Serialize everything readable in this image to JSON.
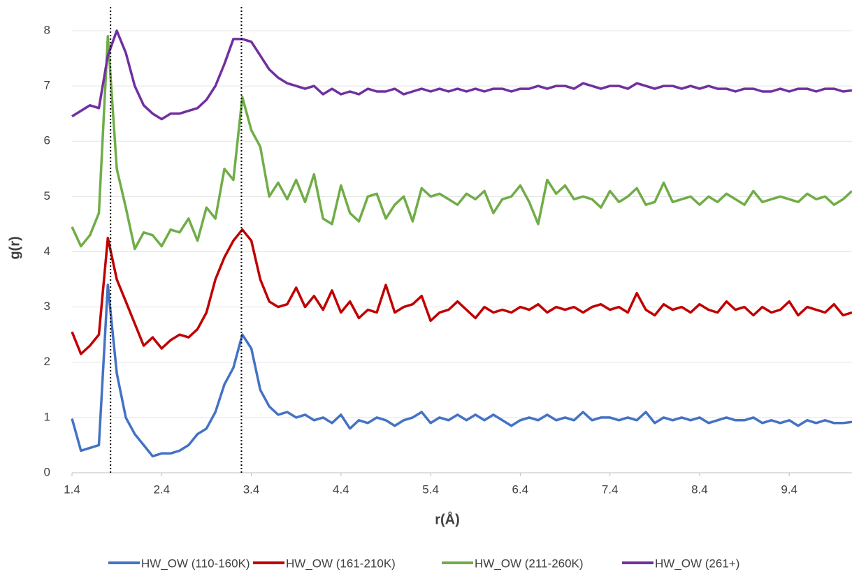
{
  "chart_data": {
    "type": "line",
    "x_label": "r(Å)",
    "y_label": "g(r)",
    "x": [
      1.4,
      1.5,
      1.6,
      1.7,
      1.8,
      1.9,
      2.0,
      2.1,
      2.2,
      2.3,
      2.4,
      2.5,
      2.6,
      2.7,
      2.8,
      2.9,
      3.0,
      3.1,
      3.2,
      3.3,
      3.4,
      3.5,
      3.6,
      3.7,
      3.8,
      3.9,
      4.0,
      4.1,
      4.2,
      4.3,
      4.4,
      4.5,
      4.6,
      4.7,
      4.8,
      4.9,
      5.0,
      5.1,
      5.2,
      5.3,
      5.4,
      5.5,
      5.6,
      5.7,
      5.8,
      5.9,
      6.0,
      6.1,
      6.2,
      6.3,
      6.4,
      6.5,
      6.6,
      6.7,
      6.8,
      6.9,
      7.0,
      7.1,
      7.2,
      7.3,
      7.4,
      7.5,
      7.6,
      7.7,
      7.8,
      7.9,
      8.0,
      8.1,
      8.2,
      8.3,
      8.4,
      8.5,
      8.6,
      8.7,
      8.8,
      8.9,
      9.0,
      9.1,
      9.2,
      9.3,
      9.4,
      9.5,
      9.6,
      9.7,
      9.8,
      9.9,
      10.0,
      10.1
    ],
    "series": [
      {
        "name": "HW_OW (110-160K)",
        "color": "#4472c4",
        "values": [
          0.98,
          0.4,
          0.45,
          0.5,
          3.4,
          1.8,
          1.0,
          0.7,
          0.5,
          0.3,
          0.35,
          0.35,
          0.4,
          0.5,
          0.7,
          0.8,
          1.1,
          1.6,
          1.9,
          2.5,
          2.25,
          1.5,
          1.2,
          1.05,
          1.1,
          1.0,
          1.05,
          0.95,
          1.0,
          0.9,
          1.05,
          0.8,
          0.95,
          0.9,
          1.0,
          0.95,
          0.85,
          0.95,
          1.0,
          1.1,
          0.9,
          1.0,
          0.95,
          1.05,
          0.95,
          1.05,
          0.95,
          1.05,
          0.95,
          0.85,
          0.95,
          1.0,
          0.95,
          1.05,
          0.95,
          1.0,
          0.95,
          1.1,
          0.95,
          1.0,
          1.0,
          0.95,
          1.0,
          0.95,
          1.1,
          0.9,
          1.0,
          0.95,
          1.0,
          0.95,
          1.0,
          0.9,
          0.95,
          1.0,
          0.95,
          0.95,
          1.0,
          0.9,
          0.95,
          0.9,
          0.95,
          0.85,
          0.95,
          0.9,
          0.95,
          0.9,
          0.9,
          0.92
        ]
      },
      {
        "name": "HW_OW (161-210K)",
        "color": "#c00000",
        "values": [
          2.55,
          2.15,
          2.3,
          2.5,
          4.25,
          3.5,
          3.1,
          2.7,
          2.3,
          2.45,
          2.25,
          2.4,
          2.5,
          2.45,
          2.6,
          2.9,
          3.5,
          3.9,
          4.2,
          4.4,
          4.2,
          3.5,
          3.1,
          3.0,
          3.05,
          3.35,
          3.0,
          3.2,
          2.95,
          3.3,
          2.9,
          3.1,
          2.8,
          2.95,
          2.9,
          3.4,
          2.9,
          3.0,
          3.05,
          3.2,
          2.75,
          2.9,
          2.95,
          3.1,
          2.95,
          2.8,
          3.0,
          2.9,
          2.95,
          2.9,
          3.0,
          2.95,
          3.05,
          2.9,
          3.0,
          2.95,
          3.0,
          2.9,
          3.0,
          3.05,
          2.95,
          3.0,
          2.9,
          3.25,
          2.95,
          2.85,
          3.05,
          2.95,
          3.0,
          2.9,
          3.05,
          2.95,
          2.9,
          3.1,
          2.95,
          3.0,
          2.85,
          3.0,
          2.9,
          2.95,
          3.1,
          2.85,
          3.0,
          2.95,
          2.9,
          3.05,
          2.85,
          2.9
        ]
      },
      {
        "name": "HW_OW (211-260K)",
        "color": "#70ad47",
        "values": [
          4.45,
          4.1,
          4.3,
          4.7,
          7.9,
          5.5,
          4.8,
          4.05,
          4.35,
          4.3,
          4.1,
          4.4,
          4.35,
          4.6,
          4.2,
          4.8,
          4.6,
          5.5,
          5.3,
          6.8,
          6.2,
          5.9,
          5.0,
          5.25,
          4.95,
          5.3,
          4.9,
          5.4,
          4.6,
          4.5,
          5.2,
          4.7,
          4.55,
          5.0,
          5.05,
          4.6,
          4.85,
          5.0,
          4.55,
          5.15,
          5.0,
          5.05,
          4.95,
          4.85,
          5.05,
          4.95,
          5.1,
          4.7,
          4.95,
          5.0,
          5.2,
          4.9,
          4.5,
          5.3,
          5.05,
          5.2,
          4.95,
          5.0,
          4.95,
          4.8,
          5.1,
          4.9,
          5.0,
          5.15,
          4.85,
          4.9,
          5.25,
          4.9,
          4.95,
          5.0,
          4.85,
          5.0,
          4.9,
          5.05,
          4.95,
          4.85,
          5.1,
          4.9,
          4.95,
          5.0,
          4.95,
          4.9,
          5.05,
          4.95,
          5.0,
          4.85,
          4.95,
          5.1
        ]
      },
      {
        "name": "HW_OW (261+)",
        "color": "#7030a0",
        "values": [
          6.45,
          6.55,
          6.65,
          6.6,
          7.55,
          8.0,
          7.6,
          7.0,
          6.65,
          6.5,
          6.4,
          6.5,
          6.5,
          6.55,
          6.6,
          6.75,
          7.0,
          7.4,
          7.85,
          7.85,
          7.8,
          7.55,
          7.3,
          7.15,
          7.05,
          7.0,
          6.95,
          7.0,
          6.85,
          6.95,
          6.85,
          6.9,
          6.85,
          6.95,
          6.9,
          6.9,
          6.95,
          6.85,
          6.9,
          6.95,
          6.9,
          6.95,
          6.9,
          6.95,
          6.9,
          6.95,
          6.9,
          6.95,
          6.95,
          6.9,
          6.95,
          6.95,
          7.0,
          6.95,
          7.0,
          7.0,
          6.95,
          7.05,
          7.0,
          6.95,
          7.0,
          7.0,
          6.95,
          7.05,
          7.0,
          6.95,
          7.0,
          7.0,
          6.95,
          7.0,
          6.95,
          7.0,
          6.95,
          6.95,
          6.9,
          6.95,
          6.95,
          6.9,
          6.9,
          6.95,
          6.9,
          6.95,
          6.95,
          6.9,
          6.95,
          6.95,
          6.9,
          6.92
        ]
      }
    ],
    "reference_lines": [
      1.83,
      3.29
    ],
    "xlim": [
      1.4,
      10.1
    ],
    "xticks": [
      1.4,
      2.4,
      3.4,
      4.4,
      5.4,
      6.4,
      7.4,
      8.4,
      9.4
    ],
    "ylim": [
      0,
      8
    ],
    "yticks": [
      0,
      1,
      2,
      3,
      4,
      5,
      6,
      7,
      8
    ],
    "grid": true,
    "legend": "bottom"
  }
}
